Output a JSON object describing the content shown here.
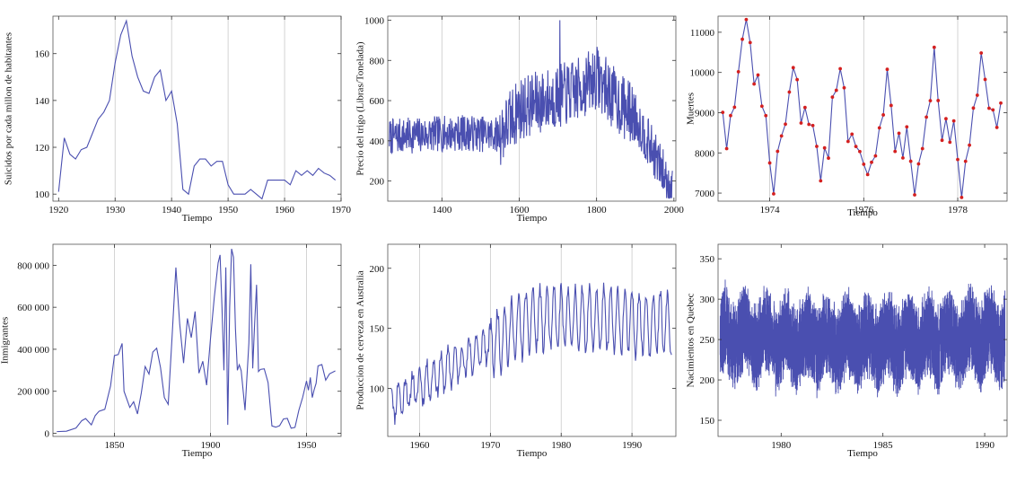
{
  "chart_data": [
    {
      "type": "line",
      "xlabel": "Tiempo",
      "ylabel": "Suicidos por cada millon de habitantes",
      "xlim": [
        1919,
        1970
      ],
      "ylim": [
        97,
        176
      ],
      "xticks": [
        1920,
        1930,
        1940,
        1950,
        1960,
        1970
      ],
      "yticks": [
        100,
        120,
        140,
        160
      ],
      "grid_x": [
        1930,
        1940,
        1950,
        1960
      ],
      "color": "#4a4fb0",
      "series": [
        {
          "x": [
            1920,
            1921,
            1922,
            1923,
            1924,
            1925,
            1926,
            1927,
            1928,
            1929,
            1930,
            1931,
            1932,
            1933,
            1934,
            1935,
            1936,
            1937,
            1938,
            1939,
            1940,
            1941,
            1942,
            1943,
            1944,
            1945,
            1946,
            1947,
            1948,
            1949,
            1950,
            1951,
            1952,
            1953,
            1954,
            1955,
            1956,
            1957,
            1958,
            1959,
            1960,
            1961,
            1962,
            1963,
            1964,
            1965,
            1966,
            1967,
            1968,
            1969
          ],
          "y": [
            101,
            124,
            117,
            115,
            119,
            120,
            126,
            132,
            135,
            140,
            156,
            168,
            174,
            159,
            150,
            144,
            143,
            150,
            153,
            140,
            144,
            130,
            102,
            100,
            112,
            115,
            115,
            112,
            114,
            114,
            104,
            100,
            100,
            100,
            102,
            100,
            98,
            106,
            106,
            106,
            106,
            104,
            110,
            108,
            110,
            108,
            111,
            109,
            108,
            106
          ]
        }
      ]
    },
    {
      "type": "line",
      "xlabel": "Tiempo",
      "ylabel": "Precio del trigo (Libras/Tonelada)",
      "xlim": [
        1260,
        2005
      ],
      "ylim": [
        100,
        1020
      ],
      "xticks": [
        1400,
        1600,
        1800,
        2000
      ],
      "yticks": [
        200,
        400,
        600,
        800,
        1000
      ],
      "grid_x": [
        1400,
        1600,
        1800
      ],
      "color": "#4a4fb0",
      "generated_series": {
        "kind": "wheat",
        "x_start": 1264,
        "x_end": 1996,
        "step": 1
      }
    },
    {
      "type": "line",
      "markers": true,
      "marker_color": "#d42020",
      "xlabel": "Tiempo",
      "ylabel": "Muertes",
      "xlim": [
        1972.9,
        1979.05
      ],
      "ylim": [
        6800,
        11400
      ],
      "xticks": [
        1974,
        1976,
        1978
      ],
      "yticks": [
        7000,
        8000,
        9000,
        10000,
        11000
      ],
      "grid_x": [
        1974,
        1976,
        1978
      ],
      "color": "#4a4fb0",
      "series": [
        {
          "x_start": 1973.0,
          "x_step": 0.08333,
          "y": [
            9007,
            8106,
            8928,
            9137,
            10017,
            10826,
            11317,
            10744,
            9713,
            9938,
            9161,
            8927,
            7750,
            6981,
            8038,
            8422,
            8714,
            9512,
            10120,
            9823,
            8743,
            9129,
            8710,
            8680,
            8162,
            7306,
            8124,
            7870,
            9387,
            9556,
            10093,
            9620,
            8285,
            8466,
            8160,
            8034,
            7717,
            7461,
            7767,
            7925,
            8623,
            8945,
            10078,
            9179,
            8037,
            8488,
            7874,
            8647,
            7792,
            6957,
            7726,
            8106,
            8890,
            9299,
            10625,
            9302,
            8314,
            8850,
            8265,
            8796,
            7836,
            6892,
            7791,
            8192,
            9115,
            9434,
            10484,
            9827,
            9110,
            9070,
            8633,
            9240
          ]
        }
      ]
    },
    {
      "type": "line",
      "xlabel": "Tiempo",
      "ylabel": "Inmigrantes",
      "xlim": [
        1818,
        1968
      ],
      "ylim": [
        -15000,
        900000
      ],
      "xticks": [
        1850,
        1900,
        1950
      ],
      "xtick_labels": [
        "1850",
        "1900",
        "1950"
      ],
      "yticks": [
        0,
        200000,
        400000,
        600000,
        800000
      ],
      "ytick_labels": [
        "0",
        "200 000",
        "400 000",
        "600 000",
        "800 000"
      ],
      "grid_x": [
        1850,
        1900,
        1950
      ],
      "color": "#4a4fb0",
      "series": [
        {
          "x": [
            1820,
            1825,
            1830,
            1833,
            1835,
            1838,
            1840,
            1842,
            1845,
            1848,
            1850,
            1852,
            1854,
            1855,
            1858,
            1860,
            1862,
            1864,
            1866,
            1868,
            1870,
            1872,
            1874,
            1876,
            1878,
            1880,
            1882,
            1884,
            1886,
            1888,
            1890,
            1892,
            1894,
            1896,
            1898,
            1900,
            1902,
            1904,
            1905,
            1906,
            1907,
            1908,
            1909,
            1910,
            1911,
            1912,
            1913,
            1914,
            1915,
            1916,
            1918,
            1920,
            1921,
            1922,
            1923,
            1924,
            1925,
            1926,
            1928,
            1930,
            1932,
            1934,
            1936,
            1938,
            1940,
            1942,
            1944,
            1946,
            1948,
            1950,
            1951,
            1952,
            1953,
            1954,
            1955,
            1956,
            1958,
            1960,
            1962,
            1965
          ],
          "y": [
            8000,
            10000,
            25000,
            60000,
            70000,
            40000,
            84000,
            105000,
            114000,
            226000,
            370000,
            375000,
            428000,
            200000,
            123000,
            150000,
            92000,
            192000,
            318000,
            282000,
            387000,
            405000,
            313000,
            170000,
            138000,
            457000,
            789000,
            519000,
            334000,
            547000,
            455000,
            580000,
            286000,
            343000,
            229000,
            449000,
            648000,
            812000,
            849000,
            600000,
            300000,
            790000,
            40000,
            600000,
            878000,
            838000,
            500000,
            300000,
            326000,
            298000,
            110000,
            430000,
            805000,
            309000,
            522000,
            707000,
            294000,
            304000,
            307000,
            241000,
            35000,
            29000,
            36000,
            68000,
            71000,
            24000,
            28000,
            109000,
            171000,
            249000,
            205000,
            266000,
            170000,
            208000,
            238000,
            321000,
            327000,
            253000,
            283000,
            297000
          ]
        }
      ]
    },
    {
      "type": "line",
      "xlabel": "Tiempo",
      "ylabel": "Produccion de cerveza en Australia",
      "xlim": [
        1955.5,
        1996.2
      ],
      "ylim": [
        60,
        220
      ],
      "xticks": [
        1960,
        1970,
        1980,
        1990
      ],
      "yticks": [
        100,
        150,
        200
      ],
      "grid_x": [
        1960,
        1970,
        1980,
        1990
      ],
      "color": "#4a4fb0",
      "generated_series": {
        "kind": "beer",
        "x_start": 1956.0,
        "x_end": 1995.6,
        "step": 0.08333
      }
    },
    {
      "type": "line",
      "xlabel": "Tiempo",
      "ylabel": "Nacimientos en Quebec",
      "xlim": [
        1976.9,
        1991.1
      ],
      "ylim": [
        130,
        368
      ],
      "xticks": [
        1980,
        1985,
        1990
      ],
      "yticks": [
        150,
        200,
        250,
        300,
        350
      ],
      "grid_x": [],
      "color": "#4a4fb0",
      "generated_series": {
        "kind": "quebec",
        "x_start": 1977.0,
        "x_end": 1991.0,
        "step": 0.00274
      }
    }
  ]
}
